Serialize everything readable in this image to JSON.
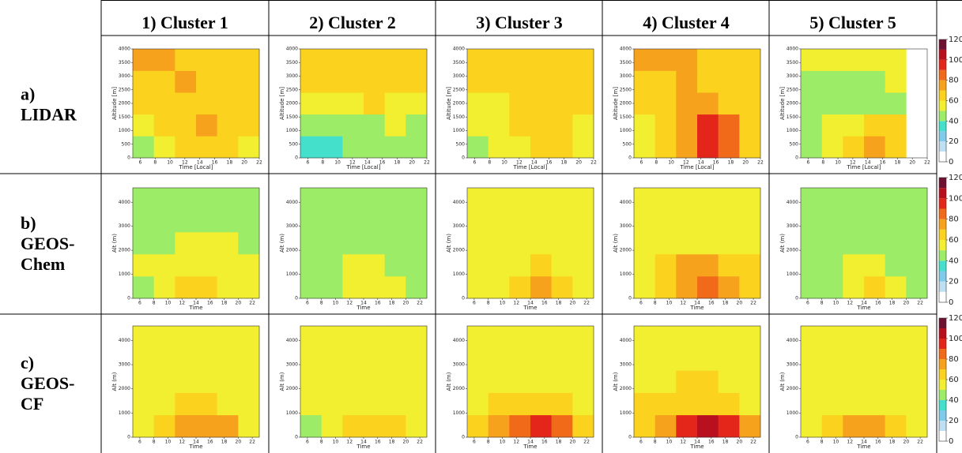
{
  "columns": [
    "1) Cluster 1",
    "2) Cluster 2",
    "3) Cluster 3",
    "4) Cluster 4",
    "5) Cluster 5"
  ],
  "rows": [
    [
      "a)",
      "LIDAR"
    ],
    [
      "b)",
      "GEOS-",
      "Chem"
    ],
    [
      "c)",
      "GEOS-",
      "CF"
    ]
  ],
  "colorbars": [
    {
      "ylim": [
        0,
        120
      ],
      "yticks": [
        0,
        20,
        40,
        60,
        80,
        100,
        120
      ]
    },
    {
      "ylim": [
        0,
        120
      ],
      "yticks": [
        0,
        20,
        40,
        60,
        80,
        100,
        120
      ]
    },
    {
      "ylim": [
        0,
        120
      ],
      "yticks": [
        0,
        20,
        40,
        60,
        80,
        100,
        120
      ]
    }
  ],
  "colorscale": {
    "bounds": [
      0,
      10,
      20,
      30,
      40,
      50,
      60,
      70,
      80,
      90,
      100,
      110,
      120
    ],
    "colors": [
      "#ffffff",
      "#bfe0f2",
      "#7ecbea",
      "#44e0cc",
      "#9cec68",
      "#f2ee30",
      "#fbd21e",
      "#f7a21c",
      "#f06a1a",
      "#e4261a",
      "#b8101e",
      "#6e1030"
    ]
  },
  "chart_data": [
    {
      "type": "heatmap",
      "xlabel": "Time [Local]",
      "ylabel": "Altitude [m]",
      "xlim": [
        5,
        22
      ],
      "ylim": [
        0,
        4000
      ],
      "xticks": [
        6,
        8,
        10,
        12,
        14,
        16,
        18,
        20,
        22
      ],
      "yticks": [
        0,
        500,
        1000,
        1500,
        2000,
        2500,
        3000,
        3500,
        4000
      ],
      "values": [
        [
          45,
          50,
          60,
          65,
          60,
          55
        ],
        [
          55,
          60,
          65,
          70,
          65,
          60
        ],
        [
          60,
          60,
          60,
          65,
          60,
          60
        ],
        [
          65,
          65,
          70,
          65,
          65,
          60
        ],
        [
          70,
          70,
          65,
          65,
          65,
          60
        ]
      ]
    },
    {
      "type": "heatmap",
      "xlabel": "Time [Local]",
      "ylabel": "Altitude [m]",
      "xlim": [
        5,
        22
      ],
      "ylim": [
        0,
        4000
      ],
      "xticks": [
        6,
        8,
        10,
        12,
        14,
        16,
        18,
        20,
        22
      ],
      "yticks": [
        0,
        500,
        1000,
        1500,
        2000,
        2500,
        3000,
        3500,
        4000
      ],
      "values": [
        [
          35,
          35,
          45,
          45,
          40,
          45
        ],
        [
          45,
          45,
          45,
          45,
          50,
          45
        ],
        [
          50,
          55,
          55,
          60,
          55,
          50
        ],
        [
          60,
          60,
          60,
          60,
          60,
          60
        ],
        [
          60,
          65,
          65,
          65,
          65,
          60
        ]
      ]
    },
    {
      "type": "heatmap",
      "xlabel": "Time [Local]",
      "ylabel": "Altitude [m]",
      "xlim": [
        5,
        22
      ],
      "ylim": [
        0,
        4000
      ],
      "xticks": [
        6,
        8,
        10,
        12,
        14,
        16,
        18,
        20,
        22
      ],
      "yticks": [
        0,
        500,
        1000,
        1500,
        2000,
        2500,
        3000,
        3500,
        4000
      ],
      "values": [
        [
          45,
          50,
          55,
          60,
          60,
          55
        ],
        [
          50,
          55,
          65,
          65,
          60,
          55
        ],
        [
          55,
          55,
          60,
          60,
          60,
          60
        ],
        [
          60,
          60,
          60,
          60,
          60,
          60
        ],
        [
          60,
          60,
          60,
          60,
          60,
          60
        ]
      ]
    },
    {
      "type": "heatmap",
      "xlabel": "Time [Local]",
      "ylabel": "Altitude [m]",
      "xlim": [
        5,
        22
      ],
      "ylim": [
        0,
        4000
      ],
      "xticks": [
        6,
        8,
        10,
        12,
        14,
        16,
        18,
        20,
        22
      ],
      "yticks": [
        0,
        500,
        1000,
        1500,
        2000,
        2500,
        3000,
        3500,
        4000
      ],
      "values": [
        [
          50,
          60,
          75,
          95,
          85,
          65
        ],
        [
          55,
          65,
          75,
          90,
          80,
          65
        ],
        [
          60,
          65,
          70,
          70,
          65,
          60
        ],
        [
          65,
          65,
          70,
          65,
          65,
          60
        ],
        [
          70,
          70,
          70,
          65,
          65,
          60
        ]
      ]
    },
    {
      "type": "heatmap",
      "xlabel": "Time [Local]",
      "ylabel": "Altitude [m]",
      "xlim": [
        5,
        22
      ],
      "ylim": [
        0,
        4000
      ],
      "xticks": [
        6,
        8,
        10,
        12,
        14,
        16,
        18,
        20,
        22
      ],
      "yticks": [
        0,
        500,
        1000,
        1500,
        2000,
        2500,
        3000,
        3500,
        4000
      ],
      "values": [
        [
          45,
          55,
          65,
          70,
          65,
          null
        ],
        [
          45,
          50,
          55,
          65,
          60,
          null
        ],
        [
          40,
          45,
          40,
          45,
          45,
          null
        ],
        [
          45,
          40,
          40,
          45,
          50,
          null
        ],
        [
          50,
          55,
          55,
          55,
          55,
          null
        ]
      ]
    },
    {
      "type": "heatmap",
      "xlabel": "Time",
      "ylabel": "Alt (m)",
      "xlim": [
        5,
        23
      ],
      "ylim": [
        0,
        4600
      ],
      "xticks": [
        6,
        8,
        10,
        12,
        14,
        16,
        18,
        20,
        22
      ],
      "yticks": [
        0,
        1000,
        2000,
        3000,
        4000
      ],
      "values": [
        [
          45,
          50,
          60,
          65,
          55,
          50
        ],
        [
          50,
          50,
          55,
          55,
          52,
          50
        ],
        [
          48,
          48,
          50,
          50,
          50,
          48
        ],
        [
          48,
          48,
          48,
          48,
          48,
          48
        ],
        [
          48,
          48,
          48,
          48,
          48,
          48
        ]
      ]
    },
    {
      "type": "heatmap",
      "xlabel": "Time",
      "ylabel": "Alt (m)",
      "xlim": [
        5,
        23
      ],
      "ylim": [
        0,
        4600
      ],
      "xticks": [
        6,
        8,
        10,
        12,
        14,
        16,
        18,
        20,
        22
      ],
      "yticks": [
        0,
        1000,
        2000,
        3000,
        4000
      ],
      "values": [
        [
          40,
          45,
          50,
          55,
          50,
          45
        ],
        [
          45,
          45,
          50,
          50,
          48,
          45
        ],
        [
          45,
          45,
          45,
          45,
          45,
          45
        ],
        [
          45,
          45,
          45,
          45,
          45,
          45
        ],
        [
          45,
          45,
          45,
          45,
          45,
          45
        ]
      ]
    },
    {
      "type": "heatmap",
      "xlabel": "Time",
      "ylabel": "Alt (m)",
      "xlim": [
        5,
        23
      ],
      "ylim": [
        0,
        4600
      ],
      "xticks": [
        6,
        8,
        10,
        12,
        14,
        16,
        18,
        20,
        22
      ],
      "yticks": [
        0,
        1000,
        2000,
        3000,
        4000
      ],
      "values": [
        [
          50,
          55,
          65,
          70,
          65,
          55
        ],
        [
          55,
          55,
          58,
          60,
          58,
          55
        ],
        [
          52,
          52,
          55,
          55,
          55,
          52
        ],
        [
          52,
          52,
          52,
          52,
          52,
          52
        ],
        [
          52,
          52,
          52,
          52,
          52,
          52
        ]
      ]
    },
    {
      "type": "heatmap",
      "xlabel": "Time",
      "ylabel": "Alt (m)",
      "xlim": [
        5,
        23
      ],
      "ylim": [
        0,
        4600
      ],
      "xticks": [
        6,
        8,
        10,
        12,
        14,
        16,
        18,
        20,
        22
      ],
      "yticks": [
        0,
        1000,
        2000,
        3000,
        4000
      ],
      "values": [
        [
          55,
          65,
          75,
          80,
          75,
          65
        ],
        [
          58,
          62,
          70,
          72,
          68,
          60
        ],
        [
          55,
          55,
          58,
          58,
          56,
          55
        ],
        [
          52,
          52,
          52,
          52,
          52,
          52
        ],
        [
          52,
          52,
          52,
          52,
          52,
          52
        ]
      ]
    },
    {
      "type": "heatmap",
      "xlabel": "Time",
      "ylabel": "Alt (m)",
      "xlim": [
        5,
        23
      ],
      "ylim": [
        0,
        4600
      ],
      "xticks": [
        6,
        8,
        10,
        12,
        14,
        16,
        18,
        20,
        22
      ],
      "yticks": [
        0,
        1000,
        2000,
        3000,
        4000
      ],
      "values": [
        [
          42,
          48,
          55,
          60,
          52,
          45
        ],
        [
          45,
          48,
          50,
          50,
          48,
          45
        ],
        [
          45,
          45,
          45,
          45,
          45,
          42
        ],
        [
          45,
          45,
          45,
          45,
          45,
          42
        ],
        [
          45,
          45,
          45,
          45,
          45,
          42
        ]
      ]
    },
    {
      "type": "heatmap",
      "xlabel": "Time",
      "ylabel": "Alt (m)",
      "xlim": [
        5,
        23
      ],
      "ylim": [
        0,
        4600
      ],
      "xticks": [
        6,
        8,
        10,
        12,
        14,
        16,
        18,
        20,
        22
      ],
      "yticks": [
        0,
        1000,
        2000,
        3000,
        4000
      ],
      "values": [
        [
          50,
          60,
          75,
          78,
          70,
          58
        ],
        [
          55,
          58,
          60,
          60,
          58,
          55
        ],
        [
          55,
          55,
          58,
          58,
          55,
          55
        ],
        [
          55,
          55,
          55,
          55,
          55,
          55
        ],
        [
          55,
          55,
          55,
          55,
          55,
          55
        ]
      ]
    },
    {
      "type": "heatmap",
      "xlabel": "Time",
      "ylabel": "Alt (m)",
      "xlim": [
        5,
        23
      ],
      "ylim": [
        0,
        4600
      ],
      "xticks": [
        6,
        8,
        10,
        12,
        14,
        16,
        18,
        20,
        22
      ],
      "yticks": [
        0,
        1000,
        2000,
        3000,
        4000
      ],
      "values": [
        [
          45,
          50,
          62,
          68,
          60,
          50
        ],
        [
          52,
          55,
          55,
          55,
          55,
          52
        ],
        [
          55,
          55,
          55,
          55,
          55,
          55
        ],
        [
          55,
          55,
          55,
          55,
          55,
          55
        ],
        [
          55,
          55,
          55,
          55,
          55,
          55
        ]
      ]
    },
    {
      "type": "heatmap",
      "xlabel": "Time",
      "ylabel": "Alt (m)",
      "xlim": [
        5,
        23
      ],
      "ylim": [
        0,
        4600
      ],
      "xticks": [
        6,
        8,
        10,
        12,
        14,
        16,
        18,
        20,
        22
      ],
      "yticks": [
        0,
        1000,
        2000,
        3000,
        4000
      ],
      "values": [
        [
          60,
          70,
          88,
          90,
          80,
          68
        ],
        [
          58,
          60,
          62,
          62,
          60,
          58
        ],
        [
          58,
          58,
          58,
          58,
          58,
          58
        ],
        [
          58,
          58,
          58,
          58,
          58,
          58
        ],
        [
          58,
          58,
          58,
          58,
          58,
          58
        ]
      ]
    },
    {
      "type": "heatmap",
      "xlabel": "Time",
      "ylabel": "Alt (m)",
      "xlim": [
        5,
        23
      ],
      "ylim": [
        0,
        4600
      ],
      "xticks": [
        6,
        8,
        10,
        12,
        14,
        16,
        18,
        20,
        22
      ],
      "yticks": [
        0,
        1000,
        2000,
        3000,
        4000
      ],
      "values": [
        [
          60,
          75,
          95,
          105,
          90,
          72
        ],
        [
          60,
          62,
          66,
          66,
          62,
          58
        ],
        [
          58,
          58,
          62,
          62,
          58,
          58
        ],
        [
          58,
          58,
          58,
          58,
          58,
          58
        ],
        [
          58,
          58,
          58,
          58,
          58,
          58
        ]
      ]
    },
    {
      "type": "heatmap",
      "xlabel": "Time",
      "ylabel": "Alt (m)",
      "xlim": [
        5,
        23
      ],
      "ylim": [
        0,
        4600
      ],
      "xticks": [
        6,
        8,
        10,
        12,
        14,
        16,
        18,
        20,
        22
      ],
      "yticks": [
        0,
        1000,
        2000,
        3000,
        4000
      ],
      "values": [
        [
          50,
          60,
          72,
          75,
          65,
          55
        ],
        [
          55,
          58,
          58,
          58,
          55,
          55
        ],
        [
          55,
          55,
          55,
          55,
          55,
          55
        ],
        [
          55,
          55,
          55,
          55,
          55,
          55
        ],
        [
          55,
          55,
          55,
          55,
          55,
          55
        ]
      ]
    }
  ]
}
